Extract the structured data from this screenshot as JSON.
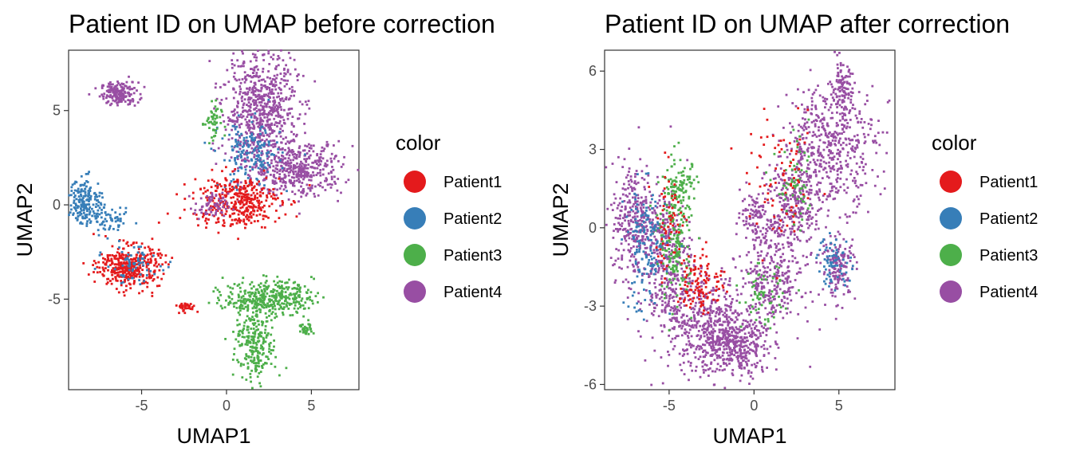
{
  "colors": {
    "Patient1": "#E41A1C",
    "Patient2": "#377EB8",
    "Patient3": "#4DAF4A",
    "Patient4": "#984EA3"
  },
  "chart_data": [
    {
      "type": "scatter",
      "title": "Patient ID on UMAP before correction",
      "xlabel": "UMAP1",
      "ylabel": "UMAP2",
      "xlim": [
        -9.3,
        7.8
      ],
      "ylim": [
        -9.8,
        8.2
      ],
      "xticks": [
        -5,
        0,
        5
      ],
      "yticks": [
        -5,
        0,
        5
      ],
      "grid": false,
      "legend": {
        "title": "color",
        "position": "right",
        "items": [
          "Patient1",
          "Patient2",
          "Patient3",
          "Patient4"
        ]
      },
      "clusters": [
        {
          "series": "Patient4",
          "cx": -6.3,
          "cy": 5.9,
          "sx": 0.55,
          "sy": 0.3,
          "n": 180
        },
        {
          "series": "Patient4",
          "cx": 2.0,
          "cy": 5.0,
          "sx": 1.1,
          "sy": 1.6,
          "n": 700
        },
        {
          "series": "Patient4",
          "cx": 4.2,
          "cy": 1.9,
          "sx": 1.3,
          "sy": 0.7,
          "n": 420
        },
        {
          "series": "Patient2",
          "cx": 1.4,
          "cy": 2.6,
          "sx": 0.9,
          "sy": 0.9,
          "n": 170
        },
        {
          "series": "Patient2",
          "cx": -8.3,
          "cy": 0.2,
          "sx": 0.5,
          "sy": 0.6,
          "n": 180
        },
        {
          "series": "Patient2",
          "cx": -6.8,
          "cy": -0.9,
          "sx": 0.6,
          "sy": 0.3,
          "n": 60
        },
        {
          "series": "Patient1",
          "cx": 0.6,
          "cy": 0.2,
          "sx": 1.3,
          "sy": 0.7,
          "n": 360
        },
        {
          "series": "Patient1",
          "cx": -5.7,
          "cy": -3.3,
          "sx": 0.9,
          "sy": 0.55,
          "n": 380
        },
        {
          "series": "Patient1",
          "cx": -2.4,
          "cy": -5.4,
          "sx": 0.3,
          "sy": 0.12,
          "n": 40
        },
        {
          "series": "Patient2",
          "cx": -5.5,
          "cy": -3.2,
          "sx": 0.8,
          "sy": 0.5,
          "n": 70
        },
        {
          "series": "Patient3",
          "cx": 2.5,
          "cy": -4.9,
          "sx": 1.3,
          "sy": 0.45,
          "n": 360
        },
        {
          "series": "Patient3",
          "cx": 1.7,
          "cy": -7.3,
          "sx": 0.6,
          "sy": 1.0,
          "n": 260
        },
        {
          "series": "Patient3",
          "cx": 4.7,
          "cy": -6.6,
          "sx": 0.2,
          "sy": 0.2,
          "n": 30
        },
        {
          "series": "Patient3",
          "cx": -0.8,
          "cy": 4.3,
          "sx": 0.25,
          "sy": 0.6,
          "n": 50
        },
        {
          "series": "Patient4",
          "cx": -0.9,
          "cy": -0.1,
          "sx": 0.5,
          "sy": 0.35,
          "n": 70
        }
      ]
    },
    {
      "type": "scatter",
      "title": "Patient ID on UMAP after correction",
      "xlabel": "UMAP1",
      "ylabel": "UMAP2",
      "xlim": [
        -8.8,
        8.3
      ],
      "ylim": [
        -6.2,
        6.8
      ],
      "xticks": [
        -5,
        0,
        5
      ],
      "yticks": [
        -6,
        -3,
        0,
        3,
        6
      ],
      "grid": false,
      "legend": {
        "title": "color",
        "position": "right",
        "items": [
          "Patient1",
          "Patient2",
          "Patient3",
          "Patient4"
        ]
      },
      "clusters": [
        {
          "series": "Patient4",
          "cx": -7.0,
          "cy": 0.3,
          "sx": 0.7,
          "sy": 1.1,
          "n": 320
        },
        {
          "series": "Patient4",
          "cx": -5.2,
          "cy": -1.5,
          "sx": 0.8,
          "sy": 1.5,
          "n": 380
        },
        {
          "series": "Patient4",
          "cx": -2.6,
          "cy": -3.7,
          "sx": 1.1,
          "sy": 0.9,
          "n": 420
        },
        {
          "series": "Patient4",
          "cx": -1.0,
          "cy": -4.6,
          "sx": 1.0,
          "sy": 0.6,
          "n": 300
        },
        {
          "series": "Patient4",
          "cx": 1.0,
          "cy": -2.0,
          "sx": 0.9,
          "sy": 1.1,
          "n": 320
        },
        {
          "series": "Patient4",
          "cx": 2.3,
          "cy": 0.7,
          "sx": 0.8,
          "sy": 1.0,
          "n": 280
        },
        {
          "series": "Patient4",
          "cx": 4.5,
          "cy": 3.2,
          "sx": 1.4,
          "sy": 1.2,
          "n": 500
        },
        {
          "series": "Patient4",
          "cx": 5.2,
          "cy": 5.3,
          "sx": 0.3,
          "sy": 0.5,
          "n": 90
        },
        {
          "series": "Patient4",
          "cx": 5.0,
          "cy": -1.5,
          "sx": 0.5,
          "sy": 0.6,
          "n": 150
        },
        {
          "series": "Patient4",
          "cx": 0.0,
          "cy": 0.6,
          "sx": 0.4,
          "sy": 0.4,
          "n": 80
        },
        {
          "series": "Patient3",
          "cx": -4.6,
          "cy": -0.3,
          "sx": 0.5,
          "sy": 1.3,
          "n": 200
        },
        {
          "series": "Patient3",
          "cx": -4.3,
          "cy": 1.6,
          "sx": 0.5,
          "sy": 0.4,
          "n": 70
        },
        {
          "series": "Patient3",
          "cx": 0.5,
          "cy": -2.6,
          "sx": 0.6,
          "sy": 0.6,
          "n": 60
        },
        {
          "series": "Patient3",
          "cx": 2.5,
          "cy": 1.5,
          "sx": 0.6,
          "sy": 0.8,
          "n": 60
        },
        {
          "series": "Patient2",
          "cx": -6.4,
          "cy": -0.8,
          "sx": 0.6,
          "sy": 1.2,
          "n": 150
        },
        {
          "series": "Patient2",
          "cx": 4.7,
          "cy": -1.3,
          "sx": 0.5,
          "sy": 0.5,
          "n": 70
        },
        {
          "series": "Patient1",
          "cx": -3.1,
          "cy": -2.1,
          "sx": 0.7,
          "sy": 0.6,
          "n": 110
        },
        {
          "series": "Patient1",
          "cx": 1.7,
          "cy": 1.6,
          "sx": 1.0,
          "sy": 1.2,
          "n": 80
        },
        {
          "series": "Patient1",
          "cx": -5.0,
          "cy": 0.3,
          "sx": 0.5,
          "sy": 1.0,
          "n": 60
        }
      ]
    }
  ]
}
